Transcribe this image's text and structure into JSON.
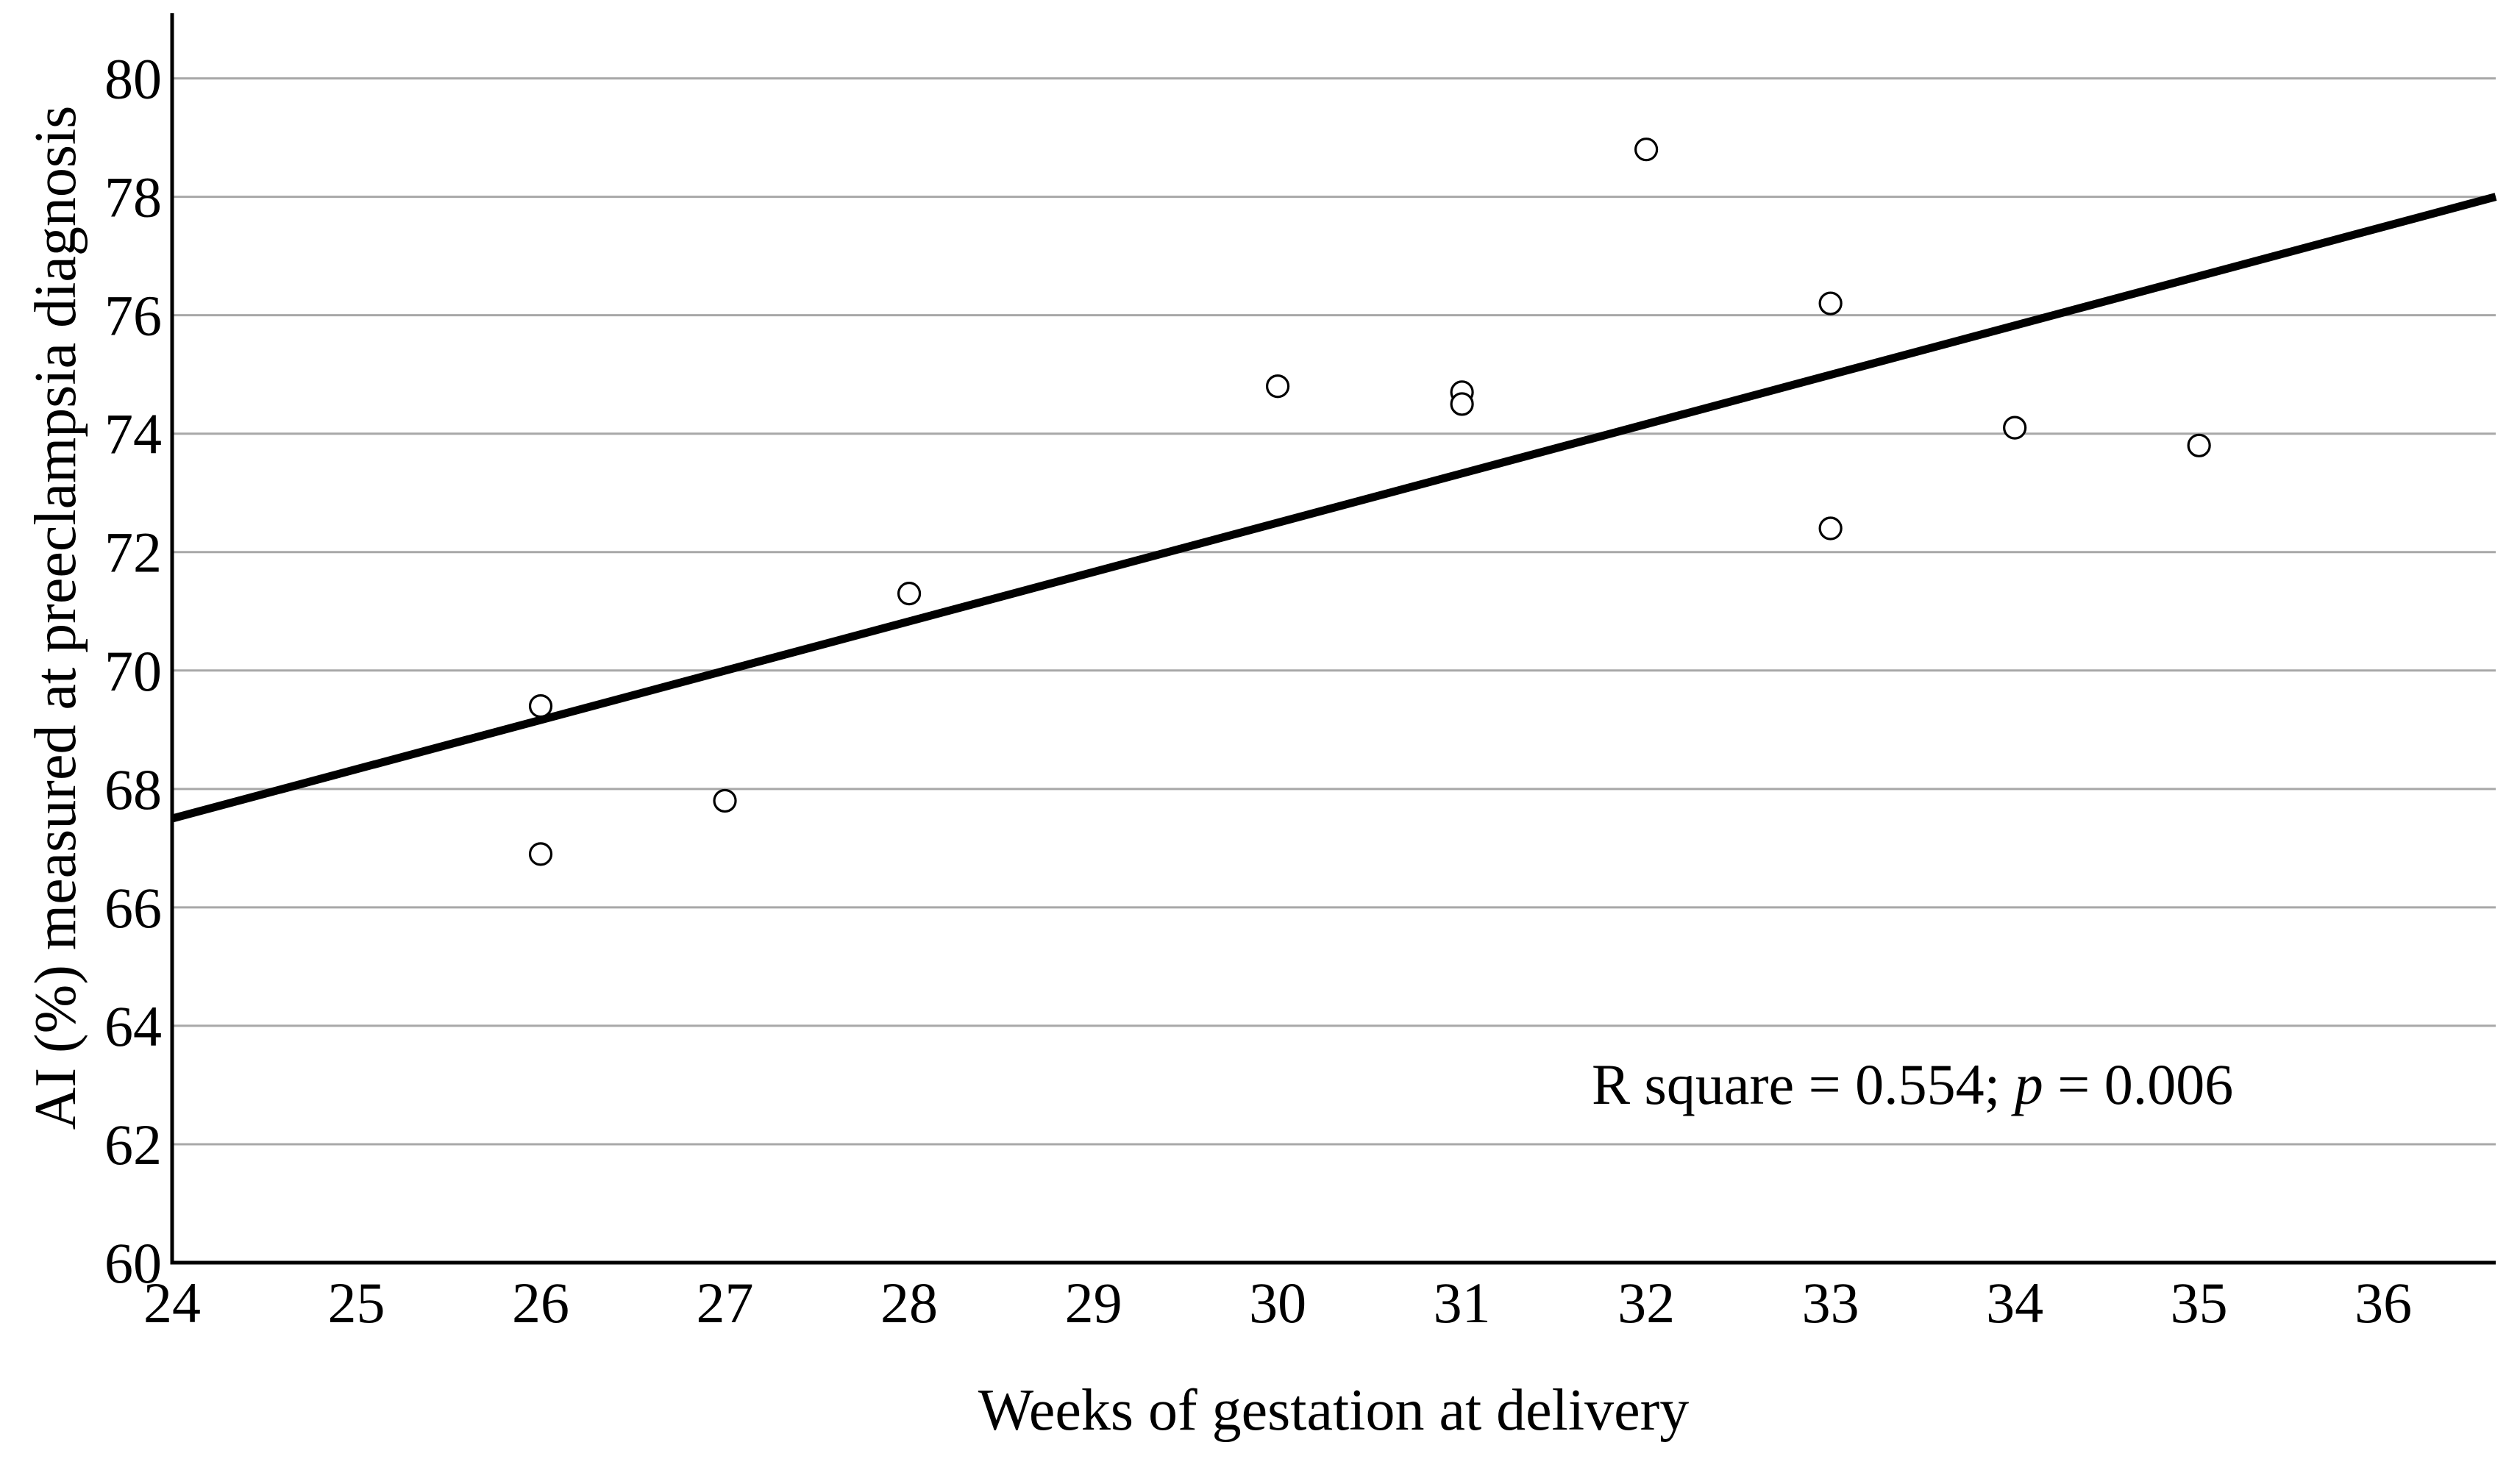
{
  "chart_data": {
    "type": "scatter",
    "title": "",
    "xlabel": "Weeks of gestation at delivery",
    "ylabel": "AI (%) measured at preeclampsia diagnosis",
    "annotation": {
      "prefix": "R square = 0.554; ",
      "p_label": "p",
      "suffix": " = 0.006",
      "r_square": 0.554,
      "p_value": 0.006
    },
    "x_ticks": [
      24,
      25,
      26,
      27,
      28,
      29,
      30,
      31,
      32,
      33,
      34,
      35,
      36
    ],
    "y_ticks": [
      60,
      62,
      64,
      66,
      68,
      70,
      72,
      74,
      76,
      78,
      80
    ],
    "xlim": [
      24,
      36.61
    ],
    "ylim": [
      60,
      81.1
    ],
    "grid": "horizontal-only",
    "legend": "none",
    "points": [
      {
        "x": 26,
        "y": 69.4
      },
      {
        "x": 26,
        "y": 66.9
      },
      {
        "x": 27,
        "y": 67.8
      },
      {
        "x": 28,
        "y": 71.3
      },
      {
        "x": 30,
        "y": 74.8
      },
      {
        "x": 31,
        "y": 74.7
      },
      {
        "x": 31,
        "y": 74.5
      },
      {
        "x": 32,
        "y": 78.8
      },
      {
        "x": 33,
        "y": 76.2
      },
      {
        "x": 33,
        "y": 72.4
      },
      {
        "x": 34,
        "y": 74.1
      },
      {
        "x": 35,
        "y": 73.8
      }
    ],
    "regression_line": {
      "x1": 24,
      "y1": 67.5,
      "x2": 36.61,
      "y2": 78.0
    },
    "marker": "open-circle",
    "colors": {
      "background": "#ffffff",
      "axis": "#000000",
      "grid": "#a8a8a8",
      "marker_stroke": "#000000",
      "marker_fill": "#ffffff",
      "regression_line": "#000000",
      "text": "#000000"
    }
  }
}
